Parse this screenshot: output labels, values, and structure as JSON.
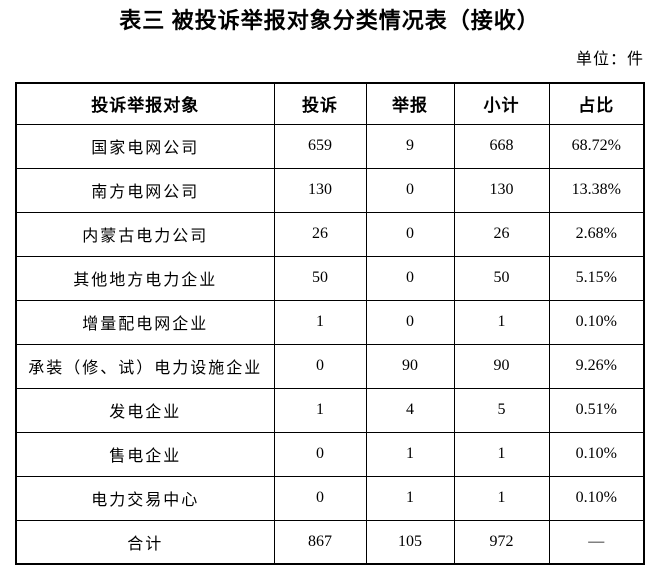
{
  "title": "表三 被投诉举报对象分类情况表（接收）",
  "unit_label": "单位：件",
  "colors": {
    "text": "#000000",
    "border": "#000000",
    "background": "#ffffff"
  },
  "table": {
    "headers": [
      "投诉举报对象",
      "投诉",
      "举报",
      "小计",
      "占比"
    ],
    "rows": [
      [
        "国家电网公司",
        "659",
        "9",
        "668",
        "68.72%"
      ],
      [
        "南方电网公司",
        "130",
        "0",
        "130",
        "13.38%"
      ],
      [
        "内蒙古电力公司",
        "26",
        "0",
        "26",
        "2.68%"
      ],
      [
        "其他地方电力企业",
        "50",
        "0",
        "50",
        "5.15%"
      ],
      [
        "增量配电网企业",
        "1",
        "0",
        "1",
        "0.10%"
      ],
      [
        "承装（修、试）电力设施企业",
        "0",
        "90",
        "90",
        "9.26%"
      ],
      [
        "发电企业",
        "1",
        "4",
        "5",
        "0.51%"
      ],
      [
        "售电企业",
        "0",
        "1",
        "1",
        "0.10%"
      ],
      [
        "电力交易中心",
        "0",
        "1",
        "1",
        "0.10%"
      ],
      [
        "合计",
        "867",
        "105",
        "972",
        "—"
      ]
    ],
    "total_row_label": "合计"
  }
}
